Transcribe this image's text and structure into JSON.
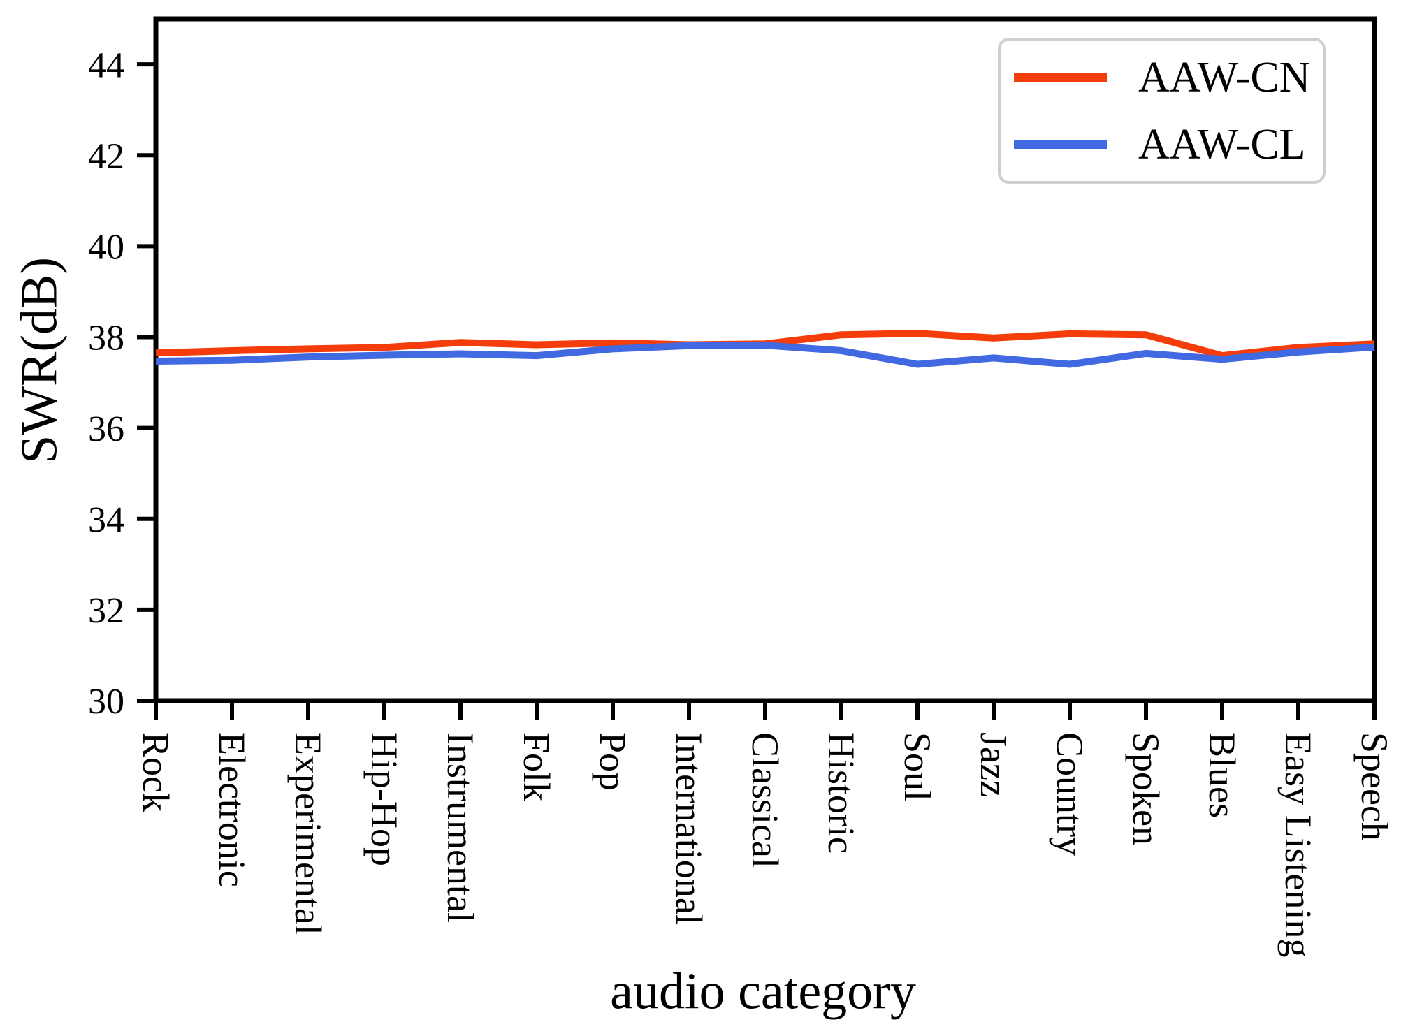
{
  "chart_data": {
    "type": "line",
    "xlabel": "audio category",
    "ylabel": "SWR(dB)",
    "categories": [
      "Rock",
      "Electronic",
      "Experimental",
      "Hip-Hop",
      "Instrumental",
      "Folk",
      "Pop",
      "International",
      "Classical",
      "Historic",
      "Soul",
      "Jazz",
      "Country",
      "Spoken",
      "Blues",
      "Easy Listening",
      "Speech"
    ],
    "series": [
      {
        "name": "AAW-CN",
        "color": "#f43d0a",
        "values": [
          37.65,
          37.7,
          37.74,
          37.77,
          37.88,
          37.83,
          37.87,
          37.83,
          37.85,
          38.05,
          38.08,
          37.98,
          38.07,
          38.05,
          37.59,
          37.77,
          37.85
        ]
      },
      {
        "name": "AAW-CL",
        "color": "#4169e1",
        "values": [
          37.47,
          37.49,
          37.56,
          37.6,
          37.63,
          37.59,
          37.74,
          37.81,
          37.82,
          37.7,
          37.4,
          37.54,
          37.4,
          37.64,
          37.51,
          37.67,
          37.78
        ]
      }
    ],
    "ylim": [
      30,
      45
    ],
    "yticks": [
      30,
      32,
      34,
      36,
      38,
      40,
      42,
      44
    ],
    "x_tick_rotation_deg": 90,
    "grid": false,
    "legend_position": "upper right",
    "axis_color": "#000000",
    "legend_border_color": "#cfcfcf"
  }
}
